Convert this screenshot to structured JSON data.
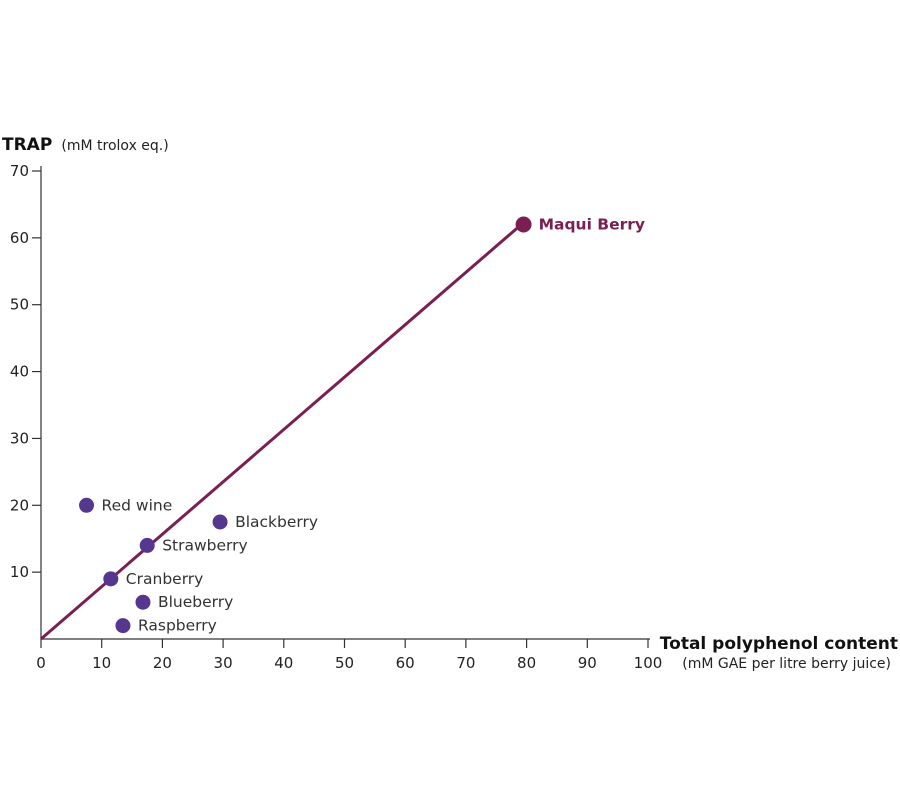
{
  "chart_data": {
    "type": "scatter",
    "xlabel": "Total polyphenol content",
    "xlabel_unit": "(mM GAE per litre berry juice)",
    "ylabel": "TRAP",
    "ylabel_unit": "(mM trolox eq.)",
    "xlim": [
      0,
      100
    ],
    "ylim": [
      0,
      70
    ],
    "xticks": [
      "0",
      "10",
      "20",
      "30",
      "40",
      "50",
      "60",
      "70",
      "80",
      "90",
      "100"
    ],
    "yticks": [
      "10",
      "20",
      "30",
      "40",
      "50",
      "60",
      "70"
    ],
    "grid": false,
    "points": [
      {
        "label": "Red wine",
        "x": 7.5,
        "y": 20,
        "highlight": false
      },
      {
        "label": "Blackberry",
        "x": 29.5,
        "y": 17.5,
        "highlight": false
      },
      {
        "label": "Strawberry",
        "x": 17.5,
        "y": 14,
        "highlight": false
      },
      {
        "label": "Cranberry",
        "x": 11.5,
        "y": 9,
        "highlight": false
      },
      {
        "label": "Blueberry",
        "x": 16.8,
        "y": 5.5,
        "highlight": false
      },
      {
        "label": "Raspberry",
        "x": 13.5,
        "y": 2,
        "highlight": false
      },
      {
        "label": "Maqui Berry",
        "x": 79.5,
        "y": 62,
        "highlight": true
      }
    ],
    "trendline": {
      "x": [
        0,
        78.5
      ],
      "y": [
        0,
        61.5
      ]
    },
    "colors": {
      "point": "#55378f",
      "highlight": "#7a1f52",
      "trendline": "#7a1f52",
      "axis": "#333333"
    }
  }
}
